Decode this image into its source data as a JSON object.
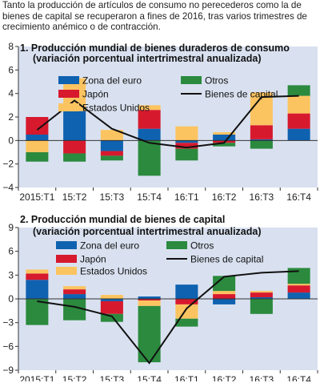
{
  "intro": "Tanto la producción de artículos de consumo no perecederos como la de bienes de capital se recuperaron a fines de 2016, tras varios trimestres de crecimiento anémico o de contracción.",
  "colors": {
    "Zona del euro": "#0f62b0",
    "Japón": "#d7192e",
    "Estados Unidos": "#fcc460",
    "Otros": "#2b8a3e",
    "Bienes de capital": "#111111",
    "panel_bg": "#d9e1f0"
  },
  "chart_data": [
    {
      "type": "bar",
      "stacked": true,
      "title": "1. Producción mundial de bienes duraderos de consumo",
      "subtitle": "(variación porcentual intertrimestral anualizada)",
      "categories": [
        "2015:T1",
        "15:T2",
        "15:T3",
        "15:T4",
        "16:T1",
        "16:T2",
        "16:T3",
        "16:T4"
      ],
      "ylim": [
        -4,
        8
      ],
      "yticks": [
        -4,
        -2,
        0,
        2,
        4,
        6,
        8
      ],
      "legend": [
        "Zona del euro",
        "Otros",
        "Japón",
        "Bienes de capital",
        "Estados Unidos"
      ],
      "series": [
        {
          "name": "Zona del euro",
          "values": [
            0.5,
            2.5,
            -0.9,
            1.0,
            -0.2,
            0.5,
            0.1,
            1.0
          ]
        },
        {
          "name": "Japón",
          "values": [
            1.5,
            -1.1,
            -0.4,
            1.6,
            -0.5,
            -0.2,
            1.2,
            1.3
          ]
        },
        {
          "name": "Estados Unidos",
          "values": [
            -1.0,
            2.8,
            0.9,
            0.4,
            1.2,
            0.2,
            2.8,
            1.5
          ]
        },
        {
          "name": "Otros",
          "values": [
            -0.8,
            -0.7,
            -0.4,
            -3.0,
            -1.0,
            -0.3,
            -0.7,
            0.9
          ]
        },
        {
          "name": "Bienes de capital",
          "type": "line",
          "values": [
            0.9,
            3.4,
            1.0,
            -0.2,
            -0.6,
            -0.2,
            3.7,
            3.8
          ]
        }
      ]
    },
    {
      "type": "bar",
      "stacked": true,
      "title": "2. Producción mundial de bienes de capital",
      "subtitle": "(variación porcentual intertrimestral anualizada)",
      "categories": [
        "2015:T1",
        "15:T2",
        "15:T3",
        "15:T4",
        "16:T1",
        "16:T2",
        "16:T3",
        "16:T4"
      ],
      "ylim": [
        -9,
        9
      ],
      "yticks": [
        -9,
        -6,
        -3,
        0,
        3,
        6,
        9
      ],
      "legend": [
        "Zona del euro",
        "Otros",
        "Japón",
        "Bienes de capital",
        "Estados Unidos"
      ],
      "series": [
        {
          "name": "Zona del euro",
          "values": [
            2.4,
            0.6,
            -0.3,
            0.3,
            1.8,
            -0.7,
            0.2,
            0.8
          ]
        },
        {
          "name": "Japón",
          "values": [
            0.8,
            0.6,
            -1.6,
            -0.2,
            -0.7,
            0.6,
            0.6,
            0.9
          ]
        },
        {
          "name": "Estados Unidos",
          "values": [
            0.5,
            0.4,
            0.5,
            -0.7,
            -1.8,
            0.4,
            0.2,
            0.2
          ]
        },
        {
          "name": "Otros",
          "values": [
            -3.3,
            -2.7,
            -1.0,
            -7.1,
            -1.0,
            1.9,
            -1.9,
            2.0
          ]
        },
        {
          "name": "Bienes de capital",
          "type": "line",
          "values": [
            -0.3,
            -1.0,
            -2.2,
            -8.1,
            -1.2,
            2.8,
            3.3,
            3.5
          ]
        }
      ]
    }
  ]
}
